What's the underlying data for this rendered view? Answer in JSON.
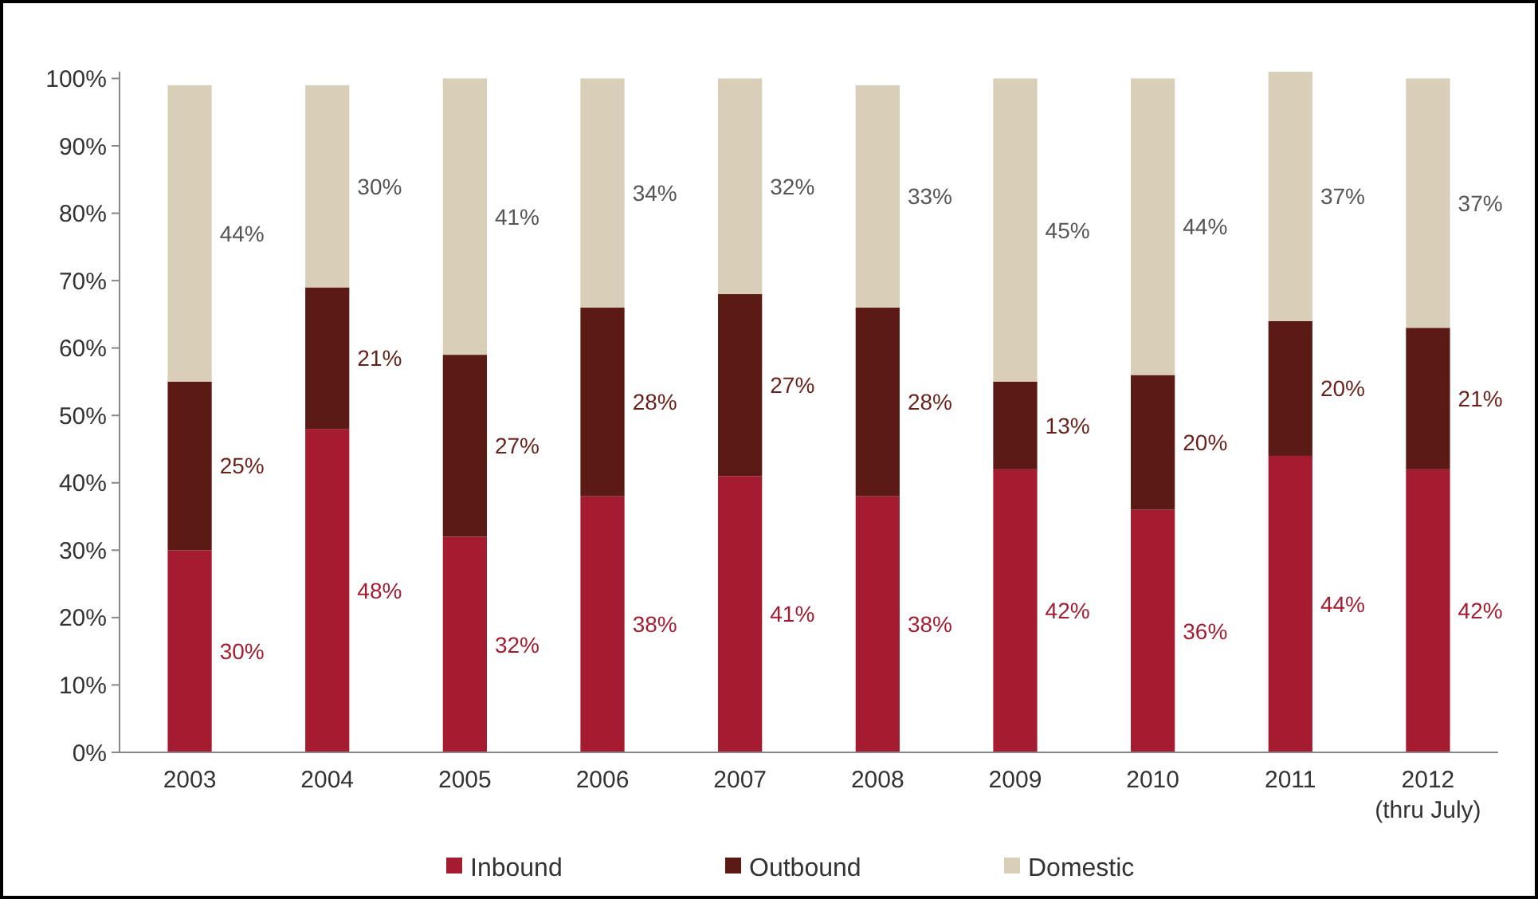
{
  "chart_data": {
    "type": "bar",
    "stacked": true,
    "categories": [
      "2003",
      "2004",
      "2005",
      "2006",
      "2007",
      "2008",
      "2009",
      "2010",
      "2011",
      "2012\n(thru July)"
    ],
    "series": [
      {
        "name": "Inbound",
        "color": "#a51c30",
        "values": [
          30,
          48,
          32,
          38,
          41,
          38,
          42,
          36,
          44,
          42
        ]
      },
      {
        "name": "Outbound",
        "color": "#5c1a14",
        "values": [
          25,
          21,
          27,
          28,
          27,
          28,
          13,
          20,
          20,
          21
        ]
      },
      {
        "name": "Domestic",
        "color": "#d9cfb8",
        "values": [
          44,
          30,
          41,
          34,
          32,
          33,
          45,
          44,
          37,
          37
        ]
      }
    ],
    "ylim": [
      0,
      101
    ],
    "yticks": [
      {
        "value": 0,
        "label": "0%"
      },
      {
        "value": 10,
        "label": "10%"
      },
      {
        "value": 20,
        "label": "20%"
      },
      {
        "value": 30,
        "label": "30%"
      },
      {
        "value": 40,
        "label": "40%"
      },
      {
        "value": 50,
        "label": "50%"
      },
      {
        "value": 60,
        "label": "60%"
      },
      {
        "value": 70,
        "label": "70%"
      },
      {
        "value": 80,
        "label": "80%"
      },
      {
        "value": 90,
        "label": "90%"
      },
      {
        "value": 100,
        "label": "100%"
      }
    ],
    "value_labels": [
      [
        "30%",
        "48%",
        "32%",
        "38%",
        "41%",
        "38%",
        "42%",
        "36%",
        "44%",
        "42%"
      ],
      [
        "25%",
        "21%",
        "27%",
        "28%",
        "27%",
        "28%",
        "13%",
        "20%",
        "20%",
        "21%"
      ],
      [
        "44%",
        "30%",
        "41%",
        "34%",
        "32%",
        "33%",
        "45%",
        "44%",
        "37%",
        "37%"
      ]
    ],
    "grid": false,
    "legend": "bottom"
  }
}
